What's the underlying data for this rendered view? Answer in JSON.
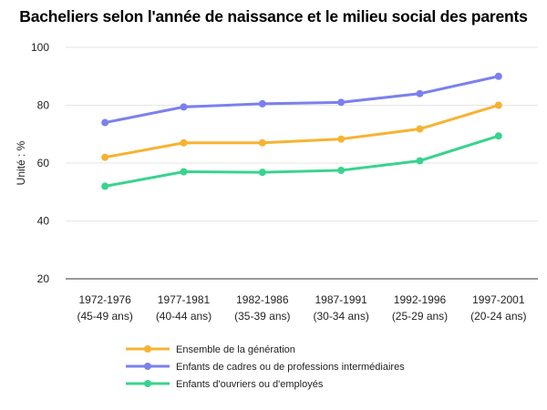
{
  "chart_data": {
    "type": "line",
    "title": "Bacheliers selon l'année de naissance et le milieu social des parents",
    "ylabel": "Unité : %",
    "xlabel": "",
    "ylim": [
      20,
      100
    ],
    "yticks": [
      20,
      40,
      60,
      80,
      100
    ],
    "grid": true,
    "legend_position": "bottom",
    "categories": [
      [
        "1972-1976",
        "(45-49 ans)"
      ],
      [
        "1977-1981",
        "(40-44 ans)"
      ],
      [
        "1982-1986",
        "(35-39 ans)"
      ],
      [
        "1987-1991",
        "(30-34 ans)"
      ],
      [
        "1992-1996",
        "(25-29 ans)"
      ],
      [
        "1997-2001",
        "(20-24 ans)"
      ]
    ],
    "series": [
      {
        "name": "Ensemble de la génération",
        "color": "#F7B330",
        "values": [
          62,
          67,
          67,
          68.3,
          71.8,
          80
        ]
      },
      {
        "name": "Enfants de cadres ou de professions intermédiaires",
        "color": "#7B80EE",
        "values": [
          74,
          79.4,
          80.5,
          81,
          84,
          90
        ]
      },
      {
        "name": "Enfants d'ouvriers ou d'employés",
        "color": "#38D38E",
        "values": [
          52,
          57,
          56.8,
          57.5,
          60.8,
          69.4
        ]
      }
    ]
  }
}
